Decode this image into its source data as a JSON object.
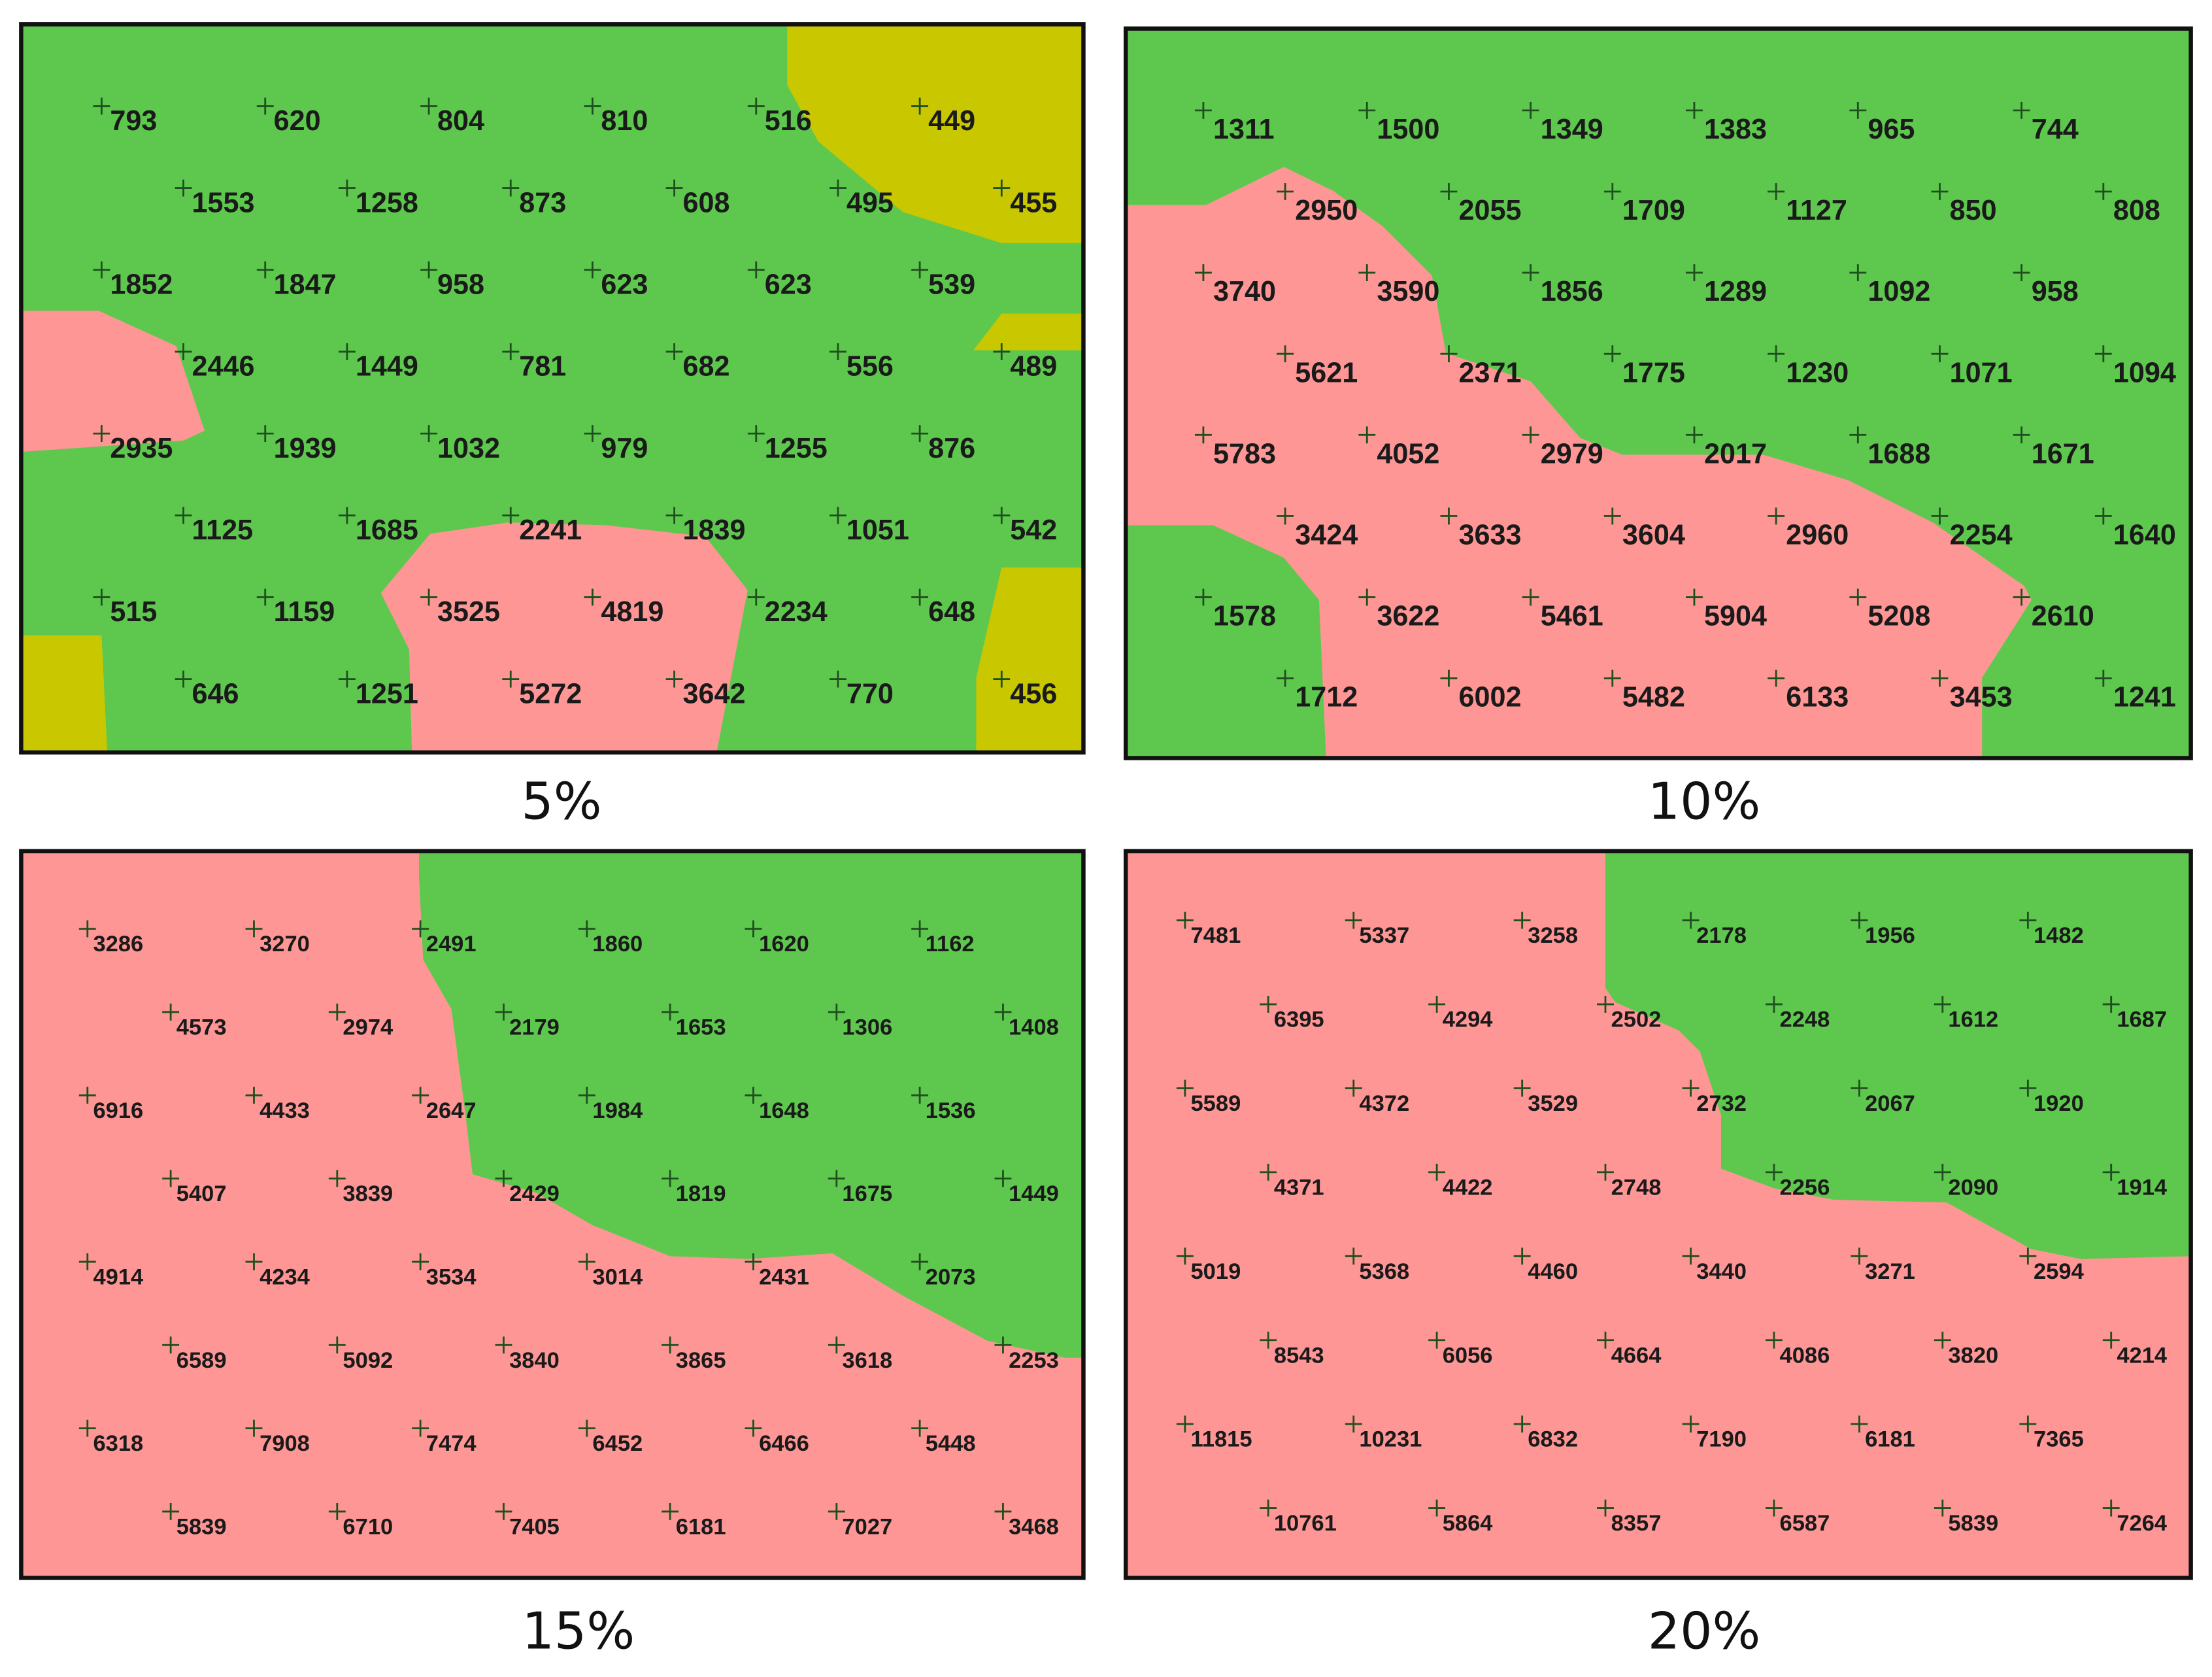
{
  "panels": [
    {
      "caption": "5%",
      "rows": [
        [
          793,
          620,
          804,
          810,
          516,
          449
        ],
        [
          1553,
          1258,
          873,
          608,
          495,
          455
        ],
        [
          1852,
          1847,
          958,
          623,
          623,
          539
        ],
        [
          2446,
          1449,
          781,
          682,
          556,
          489
        ],
        [
          2935,
          1939,
          1032,
          979,
          1255,
          876
        ],
        [
          1125,
          1685,
          2241,
          1839,
          1051,
          542
        ],
        [
          515,
          1159,
          3525,
          4819,
          2234,
          648
        ],
        [
          646,
          1251,
          5272,
          3642,
          770,
          456
        ]
      ]
    },
    {
      "caption": "10%",
      "rows": [
        [
          1311,
          1500,
          1349,
          1383,
          965,
          744
        ],
        [
          2950,
          2055,
          1709,
          1127,
          850,
          808
        ],
        [
          3740,
          3590,
          1856,
          1289,
          1092,
          958
        ],
        [
          5621,
          2371,
          1775,
          1230,
          1071,
          1094
        ],
        [
          5783,
          4052,
          2979,
          2017,
          1688,
          1671
        ],
        [
          3424,
          3633,
          3604,
          2960,
          2254,
          1640
        ],
        [
          1578,
          3622,
          5461,
          5904,
          5208,
          2610
        ],
        [
          1712,
          6002,
          5482,
          6133,
          3453,
          1241
        ]
      ]
    },
    {
      "caption": "15%",
      "rows": [
        [
          3286,
          3270,
          2491,
          1860,
          1620,
          1162
        ],
        [
          4573,
          2974,
          2179,
          1653,
          1306,
          1408
        ],
        [
          6916,
          4433,
          2647,
          1984,
          1648,
          1536
        ],
        [
          5407,
          3839,
          2429,
          1819,
          1675,
          1449
        ],
        [
          4914,
          4234,
          3534,
          3014,
          2431,
          2073
        ],
        [
          6589,
          5092,
          3840,
          3865,
          3618,
          2253
        ],
        [
          6318,
          7908,
          7474,
          6452,
          6466,
          5448
        ],
        [
          5839,
          6710,
          7405,
          6181,
          7027,
          3468
        ]
      ]
    },
    {
      "caption": "20%",
      "rows": [
        [
          7481,
          5337,
          3258,
          2178,
          1956,
          1482
        ],
        [
          6395,
          4294,
          2502,
          2248,
          1612,
          1687
        ],
        [
          5589,
          4372,
          3529,
          2732,
          2067,
          1920
        ],
        [
          4371,
          4422,
          2748,
          2256,
          2090,
          1914
        ],
        [
          5019,
          5368,
          4460,
          3440,
          3271,
          2594
        ],
        [
          8543,
          6056,
          4664,
          4086,
          3820,
          4214
        ],
        [
          11815,
          10231,
          6832,
          7190,
          6181,
          7365
        ],
        [
          10761,
          5864,
          8357,
          6587,
          5839,
          7264
        ]
      ]
    }
  ]
}
